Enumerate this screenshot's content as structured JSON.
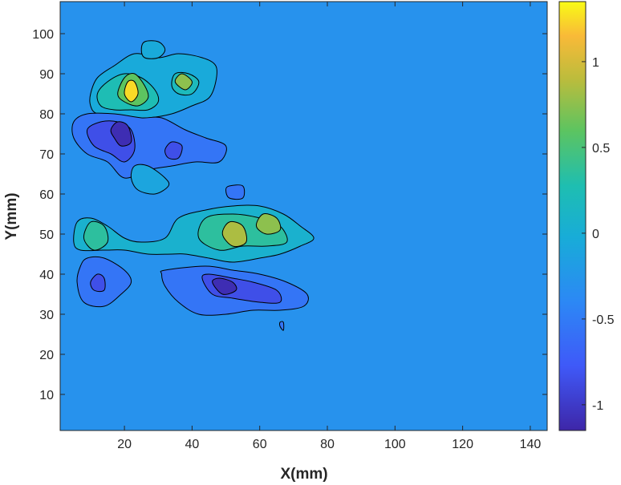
{
  "chart_data": {
    "type": "contour",
    "title": "",
    "xlabel": "X(mm)",
    "ylabel": "Y(mm)",
    "xlim": [
      1,
      145
    ],
    "ylim": [
      1,
      108
    ],
    "x_ticks": [
      20,
      40,
      60,
      80,
      100,
      120,
      140
    ],
    "y_ticks": [
      10,
      20,
      30,
      40,
      50,
      60,
      70,
      80,
      90,
      100
    ],
    "grid": false,
    "background_level": -0.3,
    "colormap": "parula",
    "colorbar": {
      "placement": "right",
      "range": [
        -1.15,
        1.35
      ],
      "ticks": [
        -1,
        -0.5,
        0,
        0.5,
        1
      ],
      "tick_labels": [
        "-1",
        "-0.5",
        "0",
        "0.5",
        "1"
      ]
    },
    "features": [
      {
        "name": "upper-positive-outer",
        "level": -0.05,
        "points": [
          [
            10,
            85
          ],
          [
            12,
            89
          ],
          [
            17,
            92
          ],
          [
            23,
            95
          ],
          [
            30,
            94
          ],
          [
            36,
            95
          ],
          [
            43,
            94
          ],
          [
            47,
            92
          ],
          [
            47,
            88
          ],
          [
            45,
            84
          ],
          [
            40,
            82
          ],
          [
            34,
            80
          ],
          [
            27,
            79
          ],
          [
            19,
            79
          ],
          [
            12,
            80
          ],
          [
            10,
            82
          ]
        ]
      },
      {
        "name": "upper-positive-green",
        "level": 0.25,
        "points": [
          [
            12,
            85
          ],
          [
            15,
            88
          ],
          [
            20,
            90
          ],
          [
            25,
            89
          ],
          [
            29,
            86
          ],
          [
            30,
            83
          ],
          [
            27,
            81
          ],
          [
            22,
            81
          ],
          [
            17,
            81
          ],
          [
            13,
            82
          ]
        ]
      },
      {
        "name": "upper-positive-yellow",
        "level": 0.6,
        "points": [
          [
            18,
            85
          ],
          [
            20,
            89
          ],
          [
            23,
            90
          ],
          [
            26,
            87
          ],
          [
            27,
            84
          ],
          [
            24,
            82
          ],
          [
            20,
            83
          ]
        ]
      },
      {
        "name": "upper-positive-peak",
        "level": 1.25,
        "points": [
          [
            20,
            85
          ],
          [
            21,
            88
          ],
          [
            23,
            88
          ],
          [
            24,
            85
          ],
          [
            22,
            83
          ]
        ]
      },
      {
        "name": "upper-right-lobe",
        "level": 0.2,
        "points": [
          [
            34,
            87
          ],
          [
            35,
            90
          ],
          [
            39,
            90
          ],
          [
            42,
            88
          ],
          [
            40,
            85
          ],
          [
            36,
            85
          ]
        ]
      },
      {
        "name": "upper-right-peak",
        "level": 0.75,
        "points": [
          [
            35,
            88
          ],
          [
            37,
            90
          ],
          [
            40,
            88
          ],
          [
            38,
            86
          ]
        ]
      },
      {
        "name": "upper-small-blob",
        "level": -0.05,
        "points": [
          [
            25,
            96
          ],
          [
            26,
            98
          ],
          [
            30,
            98
          ],
          [
            32,
            96
          ],
          [
            30,
            94
          ],
          [
            26,
            94
          ]
        ]
      },
      {
        "name": "upper-negative-outer",
        "level": -0.55,
        "points": [
          [
            5,
            78
          ],
          [
            9,
            80
          ],
          [
            17,
            80
          ],
          [
            25,
            79
          ],
          [
            31,
            79
          ],
          [
            38,
            76
          ],
          [
            44,
            74
          ],
          [
            50,
            72
          ],
          [
            48,
            68
          ],
          [
            41,
            68
          ],
          [
            34,
            67
          ],
          [
            27,
            66
          ],
          [
            20,
            64
          ],
          [
            15,
            68
          ],
          [
            9,
            70
          ],
          [
            5,
            74
          ]
        ]
      },
      {
        "name": "upper-negative-inner",
        "level": -0.85,
        "points": [
          [
            9,
            76
          ],
          [
            13,
            78
          ],
          [
            18,
            78
          ],
          [
            22,
            76
          ],
          [
            23,
            71
          ],
          [
            20,
            68
          ],
          [
            16,
            70
          ],
          [
            11,
            72
          ]
        ]
      },
      {
        "name": "upper-negative-core",
        "level": -1.1,
        "points": [
          [
            16,
            76
          ],
          [
            18,
            78
          ],
          [
            21,
            77
          ],
          [
            22,
            73
          ],
          [
            19,
            72
          ],
          [
            17,
            74
          ]
        ]
      },
      {
        "name": "upper-negative-side",
        "level": -0.85,
        "points": [
          [
            32,
            71
          ],
          [
            34,
            73
          ],
          [
            37,
            72
          ],
          [
            36,
            69
          ],
          [
            33,
            69
          ]
        ]
      },
      {
        "name": "mid-teal-blob",
        "level": -0.1,
        "points": [
          [
            22,
            64
          ],
          [
            23,
            67
          ],
          [
            27,
            67
          ],
          [
            32,
            64
          ],
          [
            33,
            62
          ],
          [
            29,
            60
          ],
          [
            24,
            61
          ]
        ]
      },
      {
        "name": "mid-small-neg-blob",
        "level": -0.55,
        "points": [
          [
            50,
            61
          ],
          [
            51,
            62
          ],
          [
            55,
            62
          ],
          [
            55,
            59
          ],
          [
            51,
            59
          ]
        ]
      },
      {
        "name": "lower-left-positive",
        "level": 0.05,
        "points": [
          [
            5,
            48
          ],
          [
            6,
            53
          ],
          [
            10,
            54
          ],
          [
            15,
            52
          ],
          [
            20,
            49
          ],
          [
            25,
            48
          ],
          [
            32,
            49
          ],
          [
            36,
            54
          ],
          [
            44,
            56
          ],
          [
            52,
            57
          ],
          [
            60,
            57
          ],
          [
            67,
            55
          ],
          [
            72,
            52
          ],
          [
            76,
            49
          ],
          [
            72,
            47
          ],
          [
            66,
            45
          ],
          [
            60,
            44
          ],
          [
            52,
            43
          ],
          [
            45,
            44
          ],
          [
            38,
            45
          ],
          [
            34,
            45
          ],
          [
            27,
            45
          ],
          [
            20,
            46
          ],
          [
            14,
            46
          ],
          [
            7,
            46
          ]
        ]
      },
      {
        "name": "lower-left-green",
        "level": 0.35,
        "points": [
          [
            8,
            49
          ],
          [
            10,
            53
          ],
          [
            14,
            52
          ],
          [
            15,
            48
          ],
          [
            11,
            46
          ]
        ]
      },
      {
        "name": "lower-center-green",
        "level": 0.35,
        "points": [
          [
            42,
            49
          ],
          [
            44,
            54
          ],
          [
            52,
            55
          ],
          [
            60,
            54
          ],
          [
            66,
            52
          ],
          [
            68,
            48
          ],
          [
            62,
            47
          ],
          [
            55,
            47
          ],
          [
            48,
            46
          ]
        ]
      },
      {
        "name": "lower-center-yellow",
        "level": 0.85,
        "points": [
          [
            49,
            50
          ],
          [
            51,
            53
          ],
          [
            55,
            52
          ],
          [
            56,
            48
          ],
          [
            52,
            47
          ]
        ]
      },
      {
        "name": "lower-right-yellow",
        "level": 0.75,
        "points": [
          [
            59,
            52
          ],
          [
            61,
            55
          ],
          [
            65,
            54
          ],
          [
            66,
            51
          ],
          [
            62,
            50
          ]
        ]
      },
      {
        "name": "lower-negative-outer",
        "level": -0.55,
        "points": [
          [
            31,
            40
          ],
          [
            32,
            41
          ],
          [
            44,
            42
          ],
          [
            52,
            41
          ],
          [
            60,
            40
          ],
          [
            68,
            38
          ],
          [
            74,
            35
          ],
          [
            73,
            32
          ],
          [
            66,
            31
          ],
          [
            58,
            31
          ],
          [
            50,
            30
          ],
          [
            42,
            30
          ],
          [
            36,
            33
          ],
          [
            32,
            37
          ]
        ]
      },
      {
        "name": "lower-negative-inner",
        "level": -0.85,
        "points": [
          [
            43,
            39
          ],
          [
            45,
            40
          ],
          [
            52,
            39
          ],
          [
            58,
            38
          ],
          [
            65,
            36
          ],
          [
            66,
            33
          ],
          [
            60,
            33
          ],
          [
            52,
            34
          ],
          [
            46,
            35
          ]
        ]
      },
      {
        "name": "lower-negative-core",
        "level": -1.1,
        "points": [
          [
            46,
            38
          ],
          [
            48,
            39
          ],
          [
            52,
            38
          ],
          [
            53,
            36
          ],
          [
            49,
            35
          ]
        ]
      },
      {
        "name": "lower-left-negative",
        "level": -0.55,
        "points": [
          [
            7,
            42
          ],
          [
            9,
            44
          ],
          [
            14,
            44
          ],
          [
            20,
            41
          ],
          [
            22,
            38
          ],
          [
            19,
            35
          ],
          [
            14,
            32
          ],
          [
            8,
            33
          ],
          [
            6,
            38
          ]
        ]
      },
      {
        "name": "lower-left-negative-inner",
        "level": -0.85,
        "points": [
          [
            10,
            38
          ],
          [
            12,
            40
          ],
          [
            14,
            39
          ],
          [
            14,
            36
          ],
          [
            11,
            36
          ]
        ]
      },
      {
        "name": "lower-small-tail",
        "level": -0.55,
        "points": [
          [
            66,
            27
          ],
          [
            66,
            28
          ],
          [
            67,
            28
          ],
          [
            67,
            26
          ]
        ]
      }
    ]
  }
}
